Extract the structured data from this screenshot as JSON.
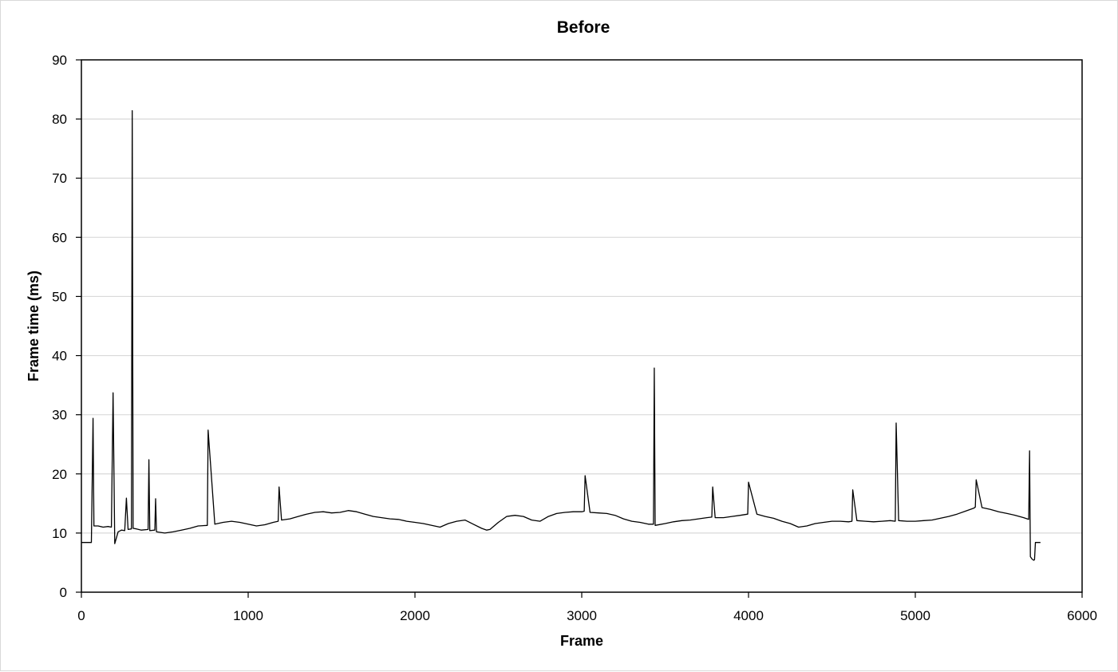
{
  "chart_data": {
    "type": "line",
    "title": "Before",
    "xlabel": "Frame",
    "ylabel": "Frame time (ms)",
    "xlim": [
      0,
      6000
    ],
    "ylim": [
      0,
      90
    ],
    "x_ticks": [
      0,
      1000,
      2000,
      3000,
      4000,
      5000,
      6000
    ],
    "y_ticks": [
      0,
      10,
      20,
      30,
      40,
      50,
      60,
      70,
      80,
      90
    ],
    "grid": "horizontal",
    "legend": "none",
    "line_color": "#000000",
    "series": [
      {
        "x": [
          0,
          5,
          60,
          70,
          75,
          100,
          130,
          160,
          180,
          190,
          200,
          220,
          240,
          260,
          270,
          280,
          300,
          305,
          310,
          330,
          360,
          400,
          405,
          410,
          440,
          445,
          450,
          500,
          550,
          600,
          650,
          700,
          755,
          760,
          800,
          850,
          900,
          950,
          1000,
          1050,
          1100,
          1150,
          1180,
          1185,
          1200,
          1250,
          1300,
          1350,
          1400,
          1450,
          1500,
          1550,
          1600,
          1650,
          1700,
          1750,
          1800,
          1850,
          1900,
          1950,
          2000,
          2050,
          2100,
          2150,
          2200,
          2250,
          2300,
          2350,
          2400,
          2430,
          2450,
          2500,
          2550,
          2600,
          2650,
          2700,
          2750,
          2800,
          2850,
          2900,
          2950,
          3000,
          3015,
          3020,
          3050,
          3100,
          3150,
          3200,
          3250,
          3300,
          3350,
          3400,
          3430,
          3435,
          3440,
          3500,
          3550,
          3600,
          3650,
          3700,
          3750,
          3780,
          3785,
          3800,
          3850,
          3900,
          3950,
          3995,
          4000,
          4050,
          4100,
          4150,
          4200,
          4250,
          4300,
          4350,
          4400,
          4450,
          4500,
          4550,
          4600,
          4620,
          4625,
          4650,
          4700,
          4750,
          4800,
          4850,
          4880,
          4885,
          4900,
          4950,
          5000,
          5050,
          5100,
          5150,
          5200,
          5250,
          5300,
          5350,
          5360,
          5365,
          5400,
          5450,
          5500,
          5550,
          5600,
          5650,
          5680,
          5685,
          5690,
          5700,
          5710,
          5715,
          5720,
          5730,
          5750
        ],
        "y": [
          8.4,
          8.4,
          8.4,
          29.4,
          11.2,
          11.2,
          11.0,
          11.1,
          11.0,
          33.7,
          8.2,
          10.2,
          10.5,
          10.4,
          15.9,
          10.6,
          10.7,
          81.4,
          10.8,
          10.7,
          10.5,
          10.6,
          22.4,
          10.4,
          10.5,
          15.8,
          10.2,
          10.0,
          10.2,
          10.5,
          10.8,
          11.2,
          11.3,
          27.4,
          11.5,
          11.8,
          12.0,
          11.8,
          11.5,
          11.2,
          11.4,
          11.8,
          12.0,
          17.8,
          12.2,
          12.4,
          12.8,
          13.2,
          13.5,
          13.6,
          13.4,
          13.5,
          13.8,
          13.6,
          13.2,
          12.8,
          12.6,
          12.4,
          12.3,
          12.0,
          11.8,
          11.6,
          11.3,
          11.0,
          11.6,
          12.0,
          12.2,
          11.5,
          10.8,
          10.5,
          10.6,
          11.8,
          12.8,
          13.0,
          12.8,
          12.2,
          12.0,
          12.8,
          13.3,
          13.5,
          13.6,
          13.6,
          13.7,
          19.7,
          13.5,
          13.4,
          13.3,
          13.0,
          12.4,
          12.0,
          11.8,
          11.5,
          11.5,
          37.9,
          11.3,
          11.6,
          11.9,
          12.1,
          12.2,
          12.4,
          12.6,
          12.7,
          17.8,
          12.6,
          12.6,
          12.8,
          13.0,
          13.2,
          18.6,
          13.2,
          12.8,
          12.5,
          12.0,
          11.6,
          11.0,
          11.2,
          11.6,
          11.8,
          12.0,
          12.0,
          11.9,
          12.0,
          17.3,
          12.1,
          12.0,
          11.9,
          12.0,
          12.1,
          12.0,
          28.6,
          12.1,
          12.0,
          12.0,
          12.1,
          12.2,
          12.5,
          12.8,
          13.2,
          13.7,
          14.2,
          14.4,
          19.0,
          14.3,
          14.0,
          13.6,
          13.3,
          13.0,
          12.6,
          12.3,
          23.9,
          6.0,
          5.6,
          5.4,
          5.5,
          8.4,
          8.4,
          8.4
        ]
      }
    ]
  }
}
